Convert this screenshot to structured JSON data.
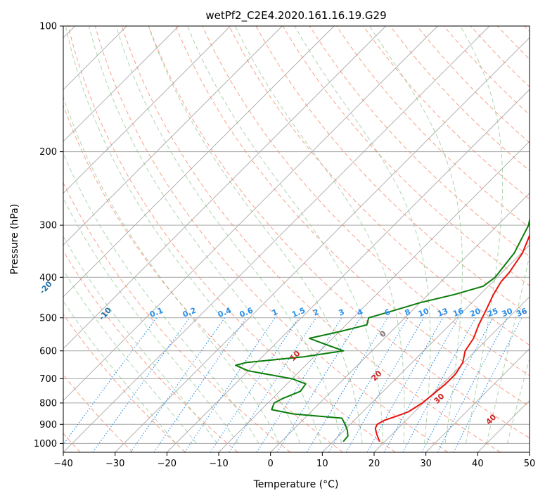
{
  "chart_data": {
    "type": "skew-t",
    "title": "wetPf2_C2E4.2020.161.16.19.G29",
    "xlabel": "Temperature (°C)",
    "ylabel": "Pressure (hPa)",
    "xlim": [
      -40,
      50
    ],
    "ylim": [
      1050,
      100
    ],
    "x_ticks": [
      -40,
      -30,
      -20,
      -10,
      0,
      10,
      20,
      30,
      40,
      50
    ],
    "y_ticks": [
      1000,
      900,
      800,
      700,
      600,
      500,
      400,
      300,
      200,
      100
    ],
    "series": [
      {
        "name": "Temperature",
        "color": "#e8140c",
        "points": [
          [
            990,
            19.0
          ],
          [
            950,
            17.0
          ],
          [
            920,
            15.6
          ],
          [
            900,
            15.2
          ],
          [
            880,
            15.8
          ],
          [
            860,
            17.4
          ],
          [
            840,
            18.8
          ],
          [
            800,
            19.8
          ],
          [
            760,
            20.2
          ],
          [
            720,
            20.6
          ],
          [
            680,
            20.6
          ],
          [
            640,
            19.8
          ],
          [
            600,
            18.0
          ],
          [
            560,
            17.2
          ],
          [
            520,
            15.6
          ],
          [
            480,
            14.2
          ],
          [
            440,
            12.6
          ],
          [
            410,
            11.6
          ],
          [
            390,
            11.4
          ],
          [
            350,
            10.2
          ],
          [
            300,
            7.0
          ],
          [
            260,
            3.0
          ],
          [
            230,
            -0.2
          ],
          [
            210,
            -3.2
          ],
          [
            195,
            -5.4
          ],
          [
            180,
            -7.0
          ],
          [
            165,
            -6.0
          ],
          [
            150,
            -3.6
          ],
          [
            135,
            -3.0
          ],
          [
            120,
            -0.4
          ],
          [
            108,
            2.6
          ],
          [
            100,
            3.8
          ]
        ]
      },
      {
        "name": "Dewpoint",
        "color": "#0b7d0b",
        "points": [
          [
            990,
            12.0
          ],
          [
            960,
            11.8
          ],
          [
            930,
            10.6
          ],
          [
            900,
            9.0
          ],
          [
            870,
            7.2
          ],
          [
            850,
            -3.0
          ],
          [
            830,
            -8.0
          ],
          [
            800,
            -8.8
          ],
          [
            780,
            -8.0
          ],
          [
            750,
            -6.0
          ],
          [
            720,
            -6.4
          ],
          [
            700,
            -10.0
          ],
          [
            670,
            -20.0
          ],
          [
            650,
            -23.5
          ],
          [
            640,
            -22.0
          ],
          [
            620,
            -12.0
          ],
          [
            600,
            -5.5
          ],
          [
            580,
            -10.0
          ],
          [
            560,
            -14.5
          ],
          [
            540,
            -10.0
          ],
          [
            520,
            -6.0
          ],
          [
            500,
            -7.0
          ],
          [
            480,
            -3.5
          ],
          [
            460,
            0.0
          ],
          [
            440,
            5.0
          ],
          [
            420,
            9.0
          ],
          [
            400,
            9.6
          ],
          [
            380,
            9.2
          ],
          [
            350,
            8.6
          ],
          [
            300,
            6.0
          ],
          [
            270,
            3.0
          ],
          [
            240,
            -0.5
          ],
          [
            215,
            -3.6
          ],
          [
            200,
            -5.0
          ],
          [
            185,
            -6.0
          ],
          [
            170,
            -7.5
          ],
          [
            155,
            -9.5
          ],
          [
            140,
            -9.8
          ],
          [
            125,
            -7.4
          ],
          [
            110,
            -5.2
          ],
          [
            100,
            -3.8
          ]
        ]
      }
    ],
    "dry_adiabats_C": [
      -100,
      -90,
      -80,
      -70,
      -60,
      -50,
      -40,
      -30,
      -20,
      -10,
      0,
      10,
      20,
      30,
      40
    ],
    "moist_adiabat_labels_C": [
      10,
      20,
      30,
      40
    ],
    "moist_adiabat_zero_label": "0",
    "mixing_ratio_labels": [
      "0.1",
      "0.2",
      "0.4",
      "0.6",
      "1",
      "1.5",
      "2",
      "3",
      "4",
      "6",
      "8",
      "10",
      "13",
      "16",
      "20",
      "25",
      "30",
      "36"
    ],
    "mixing_ratio_values": [
      0.1,
      0.2,
      0.4,
      0.6,
      1,
      1.5,
      2,
      3,
      4,
      6,
      8,
      10,
      13,
      16,
      20,
      25,
      30,
      36
    ],
    "mixing_ratio_label_pressure": 500,
    "colors": {
      "isotherm": "#a8a8a8",
      "dry_adiabat": "#f58263",
      "moist_adiabat": "#7fbf7f",
      "mixing_ratio": "#2a8fe8",
      "dry_label": "#1f6fa8",
      "moist_label": "#cc2222"
    }
  }
}
